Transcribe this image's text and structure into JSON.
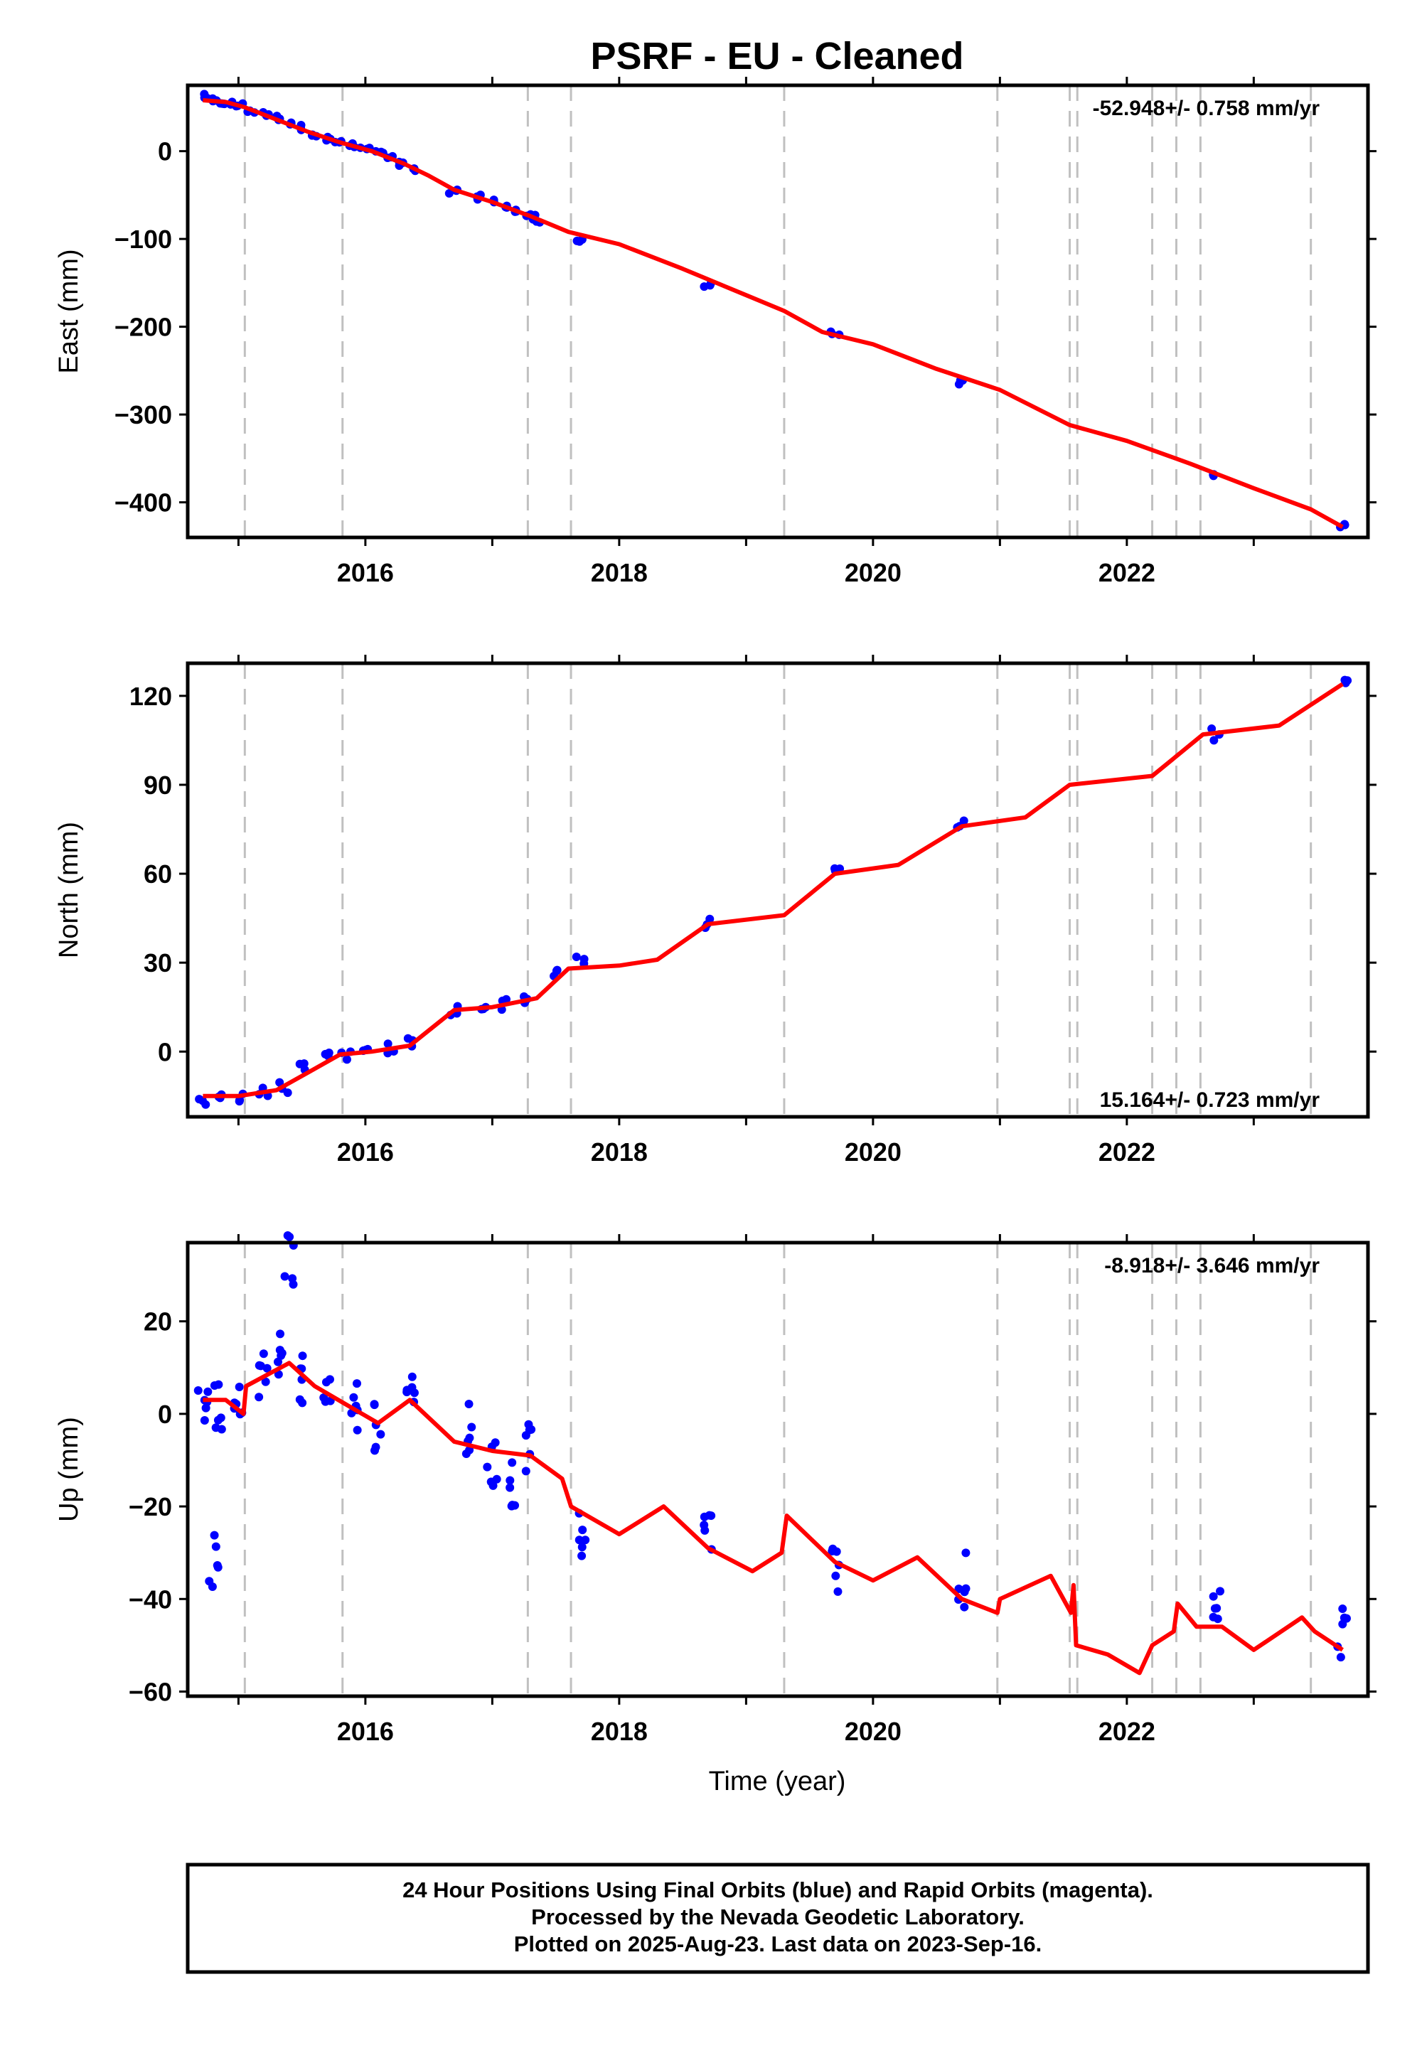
{
  "title": "PSRF  - EU - Cleaned",
  "xlabel": "Time (year)",
  "caption": [
    "24 Hour Positions Using Final Orbits (blue) and Rapid Orbits (magenta).",
    "Processed by the Nevada Geodetic Laboratory.",
    "Plotted on 2025-Aug-23. Last data on 2023-Sep-16."
  ],
  "colors": {
    "data": "#0000ff",
    "model": "#ff0000",
    "breaks": "#c0c0c0"
  },
  "chart_data": [
    {
      "type": "scatter",
      "ylabel": "East (mm)",
      "rate": "-52.948+/- 0.758 mm/yr",
      "rate_position": "top-right",
      "xlim": [
        2014.6,
        2023.9
      ],
      "ylim": [
        -440,
        75
      ],
      "yticks": [
        0,
        -100,
        -200,
        -300,
        -400
      ],
      "xticks": [
        2016,
        2018,
        2020,
        2022
      ],
      "series": [
        {
          "values": [
            [
              2014.72,
              62
            ],
            [
              2014.78,
              58
            ],
            [
              2014.85,
              56
            ],
            [
              2014.92,
              54
            ],
            [
              2015.0,
              52
            ],
            [
              2015.1,
              46
            ],
            [
              2015.2,
              42
            ],
            [
              2015.3,
              38
            ],
            [
              2015.4,
              33
            ],
            [
              2015.5,
              27
            ],
            [
              2015.6,
              20
            ],
            [
              2015.7,
              14
            ],
            [
              2015.8,
              10
            ],
            [
              2015.9,
              6
            ],
            [
              2016.0,
              3
            ],
            [
              2016.1,
              -2
            ],
            [
              2016.2,
              -8
            ],
            [
              2016.3,
              -15
            ],
            [
              2016.4,
              -22
            ],
            [
              2016.7,
              -47
            ],
            [
              2016.9,
              -52
            ],
            [
              2017.0,
              -58
            ],
            [
              2017.1,
              -62
            ],
            [
              2017.2,
              -68
            ],
            [
              2017.3,
              -74
            ],
            [
              2017.35,
              -80
            ],
            [
              2017.7,
              -100
            ],
            [
              2018.7,
              -152
            ],
            [
              2019.7,
              -208
            ],
            [
              2020.7,
              -264
            ],
            [
              2022.7,
              -370
            ],
            [
              2023.7,
              -426
            ]
          ]
        },
        {
          "values": [
            [
              2014.72,
              58
            ],
            [
              2014.9,
              56
            ],
            [
              2015.05,
              50
            ],
            [
              2015.3,
              36
            ],
            [
              2015.55,
              22
            ],
            [
              2015.8,
              10
            ],
            [
              2016.05,
              0
            ],
            [
              2016.3,
              -14
            ],
            [
              2016.5,
              -28
            ],
            [
              2016.7,
              -44
            ],
            [
              2017.0,
              -58
            ],
            [
              2017.3,
              -74
            ],
            [
              2017.6,
              -92
            ],
            [
              2018.0,
              -106
            ],
            [
              2018.5,
              -134
            ],
            [
              2019.0,
              -164
            ],
            [
              2019.3,
              -182
            ],
            [
              2019.6,
              -206
            ],
            [
              2020.0,
              -220
            ],
            [
              2020.5,
              -248
            ],
            [
              2021.0,
              -272
            ],
            [
              2021.55,
              -312
            ],
            [
              2022.0,
              -330
            ],
            [
              2022.5,
              -356
            ],
            [
              2023.0,
              -384
            ],
            [
              2023.45,
              -408
            ],
            [
              2023.7,
              -428
            ]
          ]
        }
      ]
    },
    {
      "type": "scatter",
      "ylabel": "North (mm)",
      "rate": "15.164+/- 0.723 mm/yr",
      "rate_position": "bottom-right",
      "xlim": [
        2014.6,
        2023.9
      ],
      "ylim": [
        -22,
        131
      ],
      "yticks": [
        0,
        30,
        60,
        90,
        120
      ],
      "xticks": [
        2016,
        2018,
        2020,
        2022
      ],
      "series": [
        {
          "values": [
            [
              2014.72,
              -16
            ],
            [
              2014.85,
              -15
            ],
            [
              2015.0,
              -16
            ],
            [
              2015.2,
              -14
            ],
            [
              2015.35,
              -12
            ],
            [
              2015.5,
              -6
            ],
            [
              2015.7,
              -2
            ],
            [
              2015.85,
              -1
            ],
            [
              2016.0,
              -1
            ],
            [
              2016.2,
              1
            ],
            [
              2016.35,
              3
            ],
            [
              2016.7,
              14
            ],
            [
              2016.95,
              15
            ],
            [
              2017.1,
              16
            ],
            [
              2017.25,
              18
            ],
            [
              2017.5,
              27
            ],
            [
              2017.7,
              30
            ],
            [
              2018.7,
              43
            ],
            [
              2019.7,
              61
            ],
            [
              2020.7,
              77
            ],
            [
              2022.7,
              107
            ],
            [
              2023.7,
              124
            ]
          ]
        },
        {
          "values": [
            [
              2014.72,
              -15
            ],
            [
              2015.0,
              -15
            ],
            [
              2015.3,
              -13
            ],
            [
              2015.55,
              -7
            ],
            [
              2015.8,
              -1
            ],
            [
              2016.05,
              0
            ],
            [
              2016.35,
              2
            ],
            [
              2016.7,
              14
            ],
            [
              2017.0,
              15
            ],
            [
              2017.35,
              18
            ],
            [
              2017.6,
              28
            ],
            [
              2018.0,
              29
            ],
            [
              2018.3,
              31
            ],
            [
              2018.7,
              43
            ],
            [
              2019.3,
              46
            ],
            [
              2019.7,
              60
            ],
            [
              2020.2,
              63
            ],
            [
              2020.7,
              76
            ],
            [
              2021.2,
              79
            ],
            [
              2021.55,
              90
            ],
            [
              2022.2,
              93
            ],
            [
              2022.6,
              107
            ],
            [
              2023.2,
              110
            ],
            [
              2023.7,
              124
            ]
          ]
        }
      ]
    },
    {
      "type": "scatter",
      "ylabel": "Up (mm)",
      "rate": "-8.918+/- 3.646 mm/yr",
      "rate_position": "top-right",
      "xlim": [
        2014.6,
        2023.9
      ],
      "ylim": [
        -61,
        37
      ],
      "yticks": [
        20,
        0,
        -20,
        -40,
        -60
      ],
      "xticks": [
        2016,
        2018,
        2020,
        2022
      ],
      "series": [
        {
          "values": [
            [
              2014.72,
              3
            ],
            [
              2014.8,
              -32
            ],
            [
              2014.85,
              2
            ],
            [
              2015.0,
              5
            ],
            [
              2015.2,
              8
            ],
            [
              2015.35,
              14
            ],
            [
              2015.4,
              33
            ],
            [
              2015.5,
              8
            ],
            [
              2015.7,
              3
            ],
            [
              2015.9,
              1
            ],
            [
              2016.1,
              -2
            ],
            [
              2016.35,
              6
            ],
            [
              2016.8,
              -3
            ],
            [
              2017.0,
              -10
            ],
            [
              2017.15,
              -14
            ],
            [
              2017.3,
              -8
            ],
            [
              2017.7,
              -25
            ],
            [
              2018.7,
              -26
            ],
            [
              2019.7,
              -34
            ],
            [
              2020.7,
              -36
            ],
            [
              2022.7,
              -41
            ],
            [
              2023.7,
              -48
            ]
          ]
        },
        {
          "values": [
            [
              2014.72,
              3
            ],
            [
              2014.9,
              3
            ],
            [
              2015.04,
              0
            ],
            [
              2015.06,
              6
            ],
            [
              2015.4,
              11
            ],
            [
              2015.6,
              6
            ],
            [
              2015.85,
              2
            ],
            [
              2016.1,
              -2
            ],
            [
              2016.35,
              3
            ],
            [
              2016.7,
              -6
            ],
            [
              2017.0,
              -8
            ],
            [
              2017.3,
              -9
            ],
            [
              2017.55,
              -14
            ],
            [
              2017.62,
              -20
            ],
            [
              2018.0,
              -26
            ],
            [
              2018.35,
              -20
            ],
            [
              2018.7,
              -29
            ],
            [
              2019.05,
              -34
            ],
            [
              2019.28,
              -30
            ],
            [
              2019.32,
              -22
            ],
            [
              2019.7,
              -32
            ],
            [
              2020.0,
              -36
            ],
            [
              2020.35,
              -31
            ],
            [
              2020.7,
              -40
            ],
            [
              2020.98,
              -43
            ],
            [
              2021.0,
              -40
            ],
            [
              2021.4,
              -35
            ],
            [
              2021.56,
              -43
            ],
            [
              2021.58,
              -37
            ],
            [
              2021.6,
              -50
            ],
            [
              2021.85,
              -52
            ],
            [
              2022.1,
              -56
            ],
            [
              2022.2,
              -50
            ],
            [
              2022.37,
              -47
            ],
            [
              2022.4,
              -41
            ],
            [
              2022.55,
              -46
            ],
            [
              2022.75,
              -46
            ],
            [
              2023.0,
              -51
            ],
            [
              2023.38,
              -44
            ],
            [
              2023.48,
              -47
            ],
            [
              2023.7,
              -51
            ]
          ]
        }
      ]
    }
  ],
  "break_years": [
    2015.05,
    2015.82,
    2017.28,
    2017.62,
    2019.3,
    2020.98,
    2021.55,
    2021.61,
    2022.2,
    2022.39,
    2022.58,
    2023.45
  ]
}
